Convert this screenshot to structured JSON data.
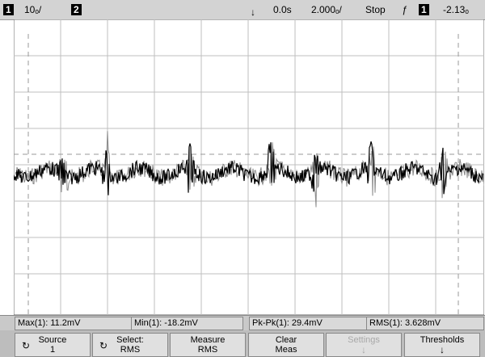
{
  "status_bar": {
    "ch1_badge": "1",
    "ch1_scale": "10ₒ/",
    "ch2_badge": "2",
    "trigger_marker": "↓",
    "time_delay": "0.0s",
    "timebase": "2.000ₒ/",
    "run_state": "Stop",
    "trigger_slope": "ƒ",
    "trigger_channel": "1",
    "trigger_level": "-2.13ₒ"
  },
  "measurements": {
    "max": "Max(1): 11.2mV",
    "min": "Min(1): -18.2mV",
    "pkpk": "Pk-Pk(1): 29.4mV",
    "rms": "RMS(1): 3.628mV"
  },
  "softkeys": [
    {
      "line1": "Source",
      "line2": "1",
      "icon": "↻"
    },
    {
      "line1": "Select:",
      "line2": "RMS",
      "icon": "↻"
    },
    {
      "line1": "Measure",
      "line2": "RMS",
      "icon": ""
    },
    {
      "line1": "Clear",
      "line2": "Meas",
      "icon": ""
    },
    {
      "line1": "Settings",
      "line2": "↓",
      "icon": ""
    },
    {
      "line1": "Thresholds",
      "line2": "↓",
      "icon": ""
    }
  ],
  "waveform": {
    "color": "#000000",
    "secondary_color": "#8a8a8a",
    "grid_color": "#bfbfbf",
    "ground_marker": "⇥"
  }
}
